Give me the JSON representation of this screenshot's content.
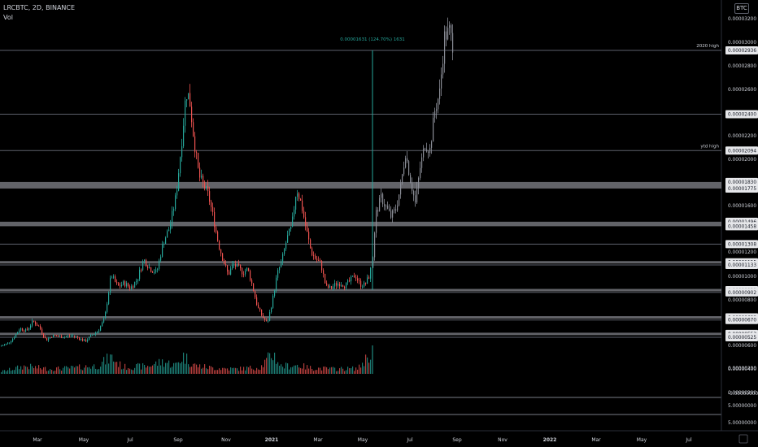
{
  "header": {
    "symbol_line": "LRCBTC, 2D, BINANCE",
    "volume_label": "Vol",
    "currency_badge": "BTC"
  },
  "chart_data": {
    "type": "candlestick",
    "title": "LRCBTC, 2D, BINANCE",
    "price_ylim": [
      3.7e-06,
      3.27e-05
    ],
    "volume_panel_label": "Vol",
    "price_ticks": [
      "0.00003200",
      "0.00003000",
      "0.00002800",
      "0.00002600",
      "0.00002200",
      "0.00002000",
      "0.00001600",
      "0.00001200",
      "0.00001000",
      "0.00000800",
      "0.00000600",
      "0.00000400",
      "0.00000200",
      "0.00000000",
      "-0.00000000"
    ],
    "lower_axis_ticks": [
      "5.00000000",
      "5.00000000"
    ],
    "x_tick_labels": [
      "Mar",
      "May",
      "Jul",
      "Sep",
      "Nov",
      "2021",
      "Mar",
      "May",
      "Jul",
      "Sep",
      "Nov",
      "2022",
      "Mar",
      "May",
      "Jul"
    ],
    "horizontal_levels": [
      {
        "label": "0.00002936",
        "value": 2.936e-05,
        "note": "2020 high"
      },
      {
        "label": "0.00002400",
        "value": 2.4e-05
      },
      {
        "label": "0.00002094",
        "value": 2.094e-05,
        "note": "ytd high"
      },
      {
        "label": "0.00001830",
        "value": 1.83e-05,
        "band": true
      },
      {
        "label": "0.00001775",
        "value": 1.775e-05,
        "band": true
      },
      {
        "label": "0.00001496",
        "value": 1.496e-05,
        "band": true
      },
      {
        "label": "0.00001458",
        "value": 1.458e-05,
        "band": true
      },
      {
        "label": "0.00001308",
        "value": 1.308e-05
      },
      {
        "label": "0.00001155",
        "value": 1.155e-05,
        "band": true
      },
      {
        "label": "0.00001133",
        "value": 1.133e-05
      },
      {
        "label": "0.00000921",
        "value": 9.21e-06,
        "band": true
      },
      {
        "label": "0.00000902",
        "value": 9.02e-06
      },
      {
        "label": "0.00000692",
        "value": 6.92e-06,
        "band": true
      },
      {
        "label": "0.00000670",
        "value": 6.7e-06
      },
      {
        "label": "0.00000553",
        "value": 5.53e-06,
        "band": true
      },
      {
        "label": "0.00000525",
        "value": 5.25e-06
      }
    ],
    "measure_annotation": "0.00001631 (124.70%) 1631",
    "price_path": [
      [
        0,
        4.5e-06
      ],
      [
        8,
        4.7e-06
      ],
      [
        16,
        5.2e-06
      ],
      [
        24,
        6e-06
      ],
      [
        32,
        5.8e-06
      ],
      [
        40,
        6.6e-06
      ],
      [
        48,
        6.1e-06
      ],
      [
        56,
        5e-06
      ],
      [
        64,
        5.4e-06
      ],
      [
        72,
        5.3e-06
      ],
      [
        80,
        5.3e-06
      ],
      [
        88,
        5.4e-06
      ],
      [
        96,
        5.2e-06
      ],
      [
        104,
        4.9e-06
      ],
      [
        112,
        5.4e-06
      ],
      [
        120,
        5.8e-06
      ],
      [
        128,
        6.8e-06
      ],
      [
        136,
        1.05e-05
      ],
      [
        144,
        9.5e-06
      ],
      [
        152,
        9.8e-06
      ],
      [
        160,
        9.4e-06
      ],
      [
        168,
        1.01e-05
      ],
      [
        176,
        1.18e-05
      ],
      [
        184,
        1.1e-05
      ],
      [
        192,
        1.07e-05
      ],
      [
        200,
        1.32e-05
      ],
      [
        208,
        1.45e-05
      ],
      [
        216,
        1.72e-05
      ],
      [
        224,
        2.25e-05
      ],
      [
        228,
        2.58e-05
      ],
      [
        232,
        2.55e-05
      ],
      [
        238,
        2.18e-05
      ],
      [
        244,
        1.88e-05
      ],
      [
        250,
        1.8e-05
      ],
      [
        256,
        1.71e-05
      ],
      [
        262,
        1.52e-05
      ],
      [
        268,
        1.31e-05
      ],
      [
        274,
        1.17e-05
      ],
      [
        280,
        1.05e-05
      ],
      [
        286,
        1.14e-05
      ],
      [
        292,
        1.11e-05
      ],
      [
        298,
        1.07e-05
      ],
      [
        304,
        1.1e-05
      ],
      [
        310,
        9.5e-06
      ],
      [
        316,
        7.8e-06
      ],
      [
        322,
        7e-06
      ],
      [
        328,
        6.4e-06
      ],
      [
        334,
        8.2e-06
      ],
      [
        340,
        1.05e-05
      ],
      [
        346,
        1.17e-05
      ],
      [
        352,
        1.35e-05
      ],
      [
        358,
        1.45e-05
      ],
      [
        364,
        1.78e-05
      ],
      [
        370,
        1.64e-05
      ],
      [
        376,
        1.43e-05
      ],
      [
        382,
        1.24e-05
      ],
      [
        388,
        1.18e-05
      ],
      [
        394,
        1.14e-05
      ],
      [
        400,
        9.5e-06
      ],
      [
        406,
        9.35e-06
      ],
      [
        412,
        9.7e-06
      ],
      [
        418,
        9.8e-06
      ],
      [
        424,
        9.6e-06
      ],
      [
        430,
        1e-05
      ],
      [
        436,
        1.05e-05
      ],
      [
        442,
        9.7e-06
      ],
      [
        448,
        9.65e-06
      ],
      [
        454,
        1.05e-05
      ],
      [
        458,
        1.21e-05
      ],
      [
        462,
        1.57e-05
      ],
      [
        468,
        1.7e-05
      ],
      [
        474,
        1.62e-05
      ],
      [
        480,
        1.54e-05
      ],
      [
        486,
        1.6e-05
      ],
      [
        492,
        1.79e-05
      ],
      [
        498,
        2.08e-05
      ],
      [
        504,
        1.85e-05
      ],
      [
        510,
        1.65e-05
      ],
      [
        516,
        1.95e-05
      ],
      [
        522,
        2.15e-05
      ],
      [
        528,
        2.1e-05
      ],
      [
        534,
        2.43e-05
      ],
      [
        540,
        2.58e-05
      ],
      [
        546,
        3.05e-05
      ],
      [
        552,
        3.1e-05
      ],
      [
        556,
        2.99e-05
      ]
    ],
    "volume_path": [
      [
        0,
        0.08
      ],
      [
        30,
        0.28
      ],
      [
        60,
        0.18
      ],
      [
        90,
        0.22
      ],
      [
        120,
        0.3
      ],
      [
        136,
        0.62
      ],
      [
        150,
        0.25
      ],
      [
        180,
        0.28
      ],
      [
        200,
        0.45
      ],
      [
        215,
        0.32
      ],
      [
        225,
        0.65
      ],
      [
        240,
        0.3
      ],
      [
        260,
        0.22
      ],
      [
        290,
        0.18
      ],
      [
        320,
        0.25
      ],
      [
        335,
        0.75
      ],
      [
        345,
        0.28
      ],
      [
        365,
        0.32
      ],
      [
        380,
        0.22
      ],
      [
        410,
        0.18
      ],
      [
        440,
        0.2
      ],
      [
        456,
        0.82
      ]
    ]
  }
}
